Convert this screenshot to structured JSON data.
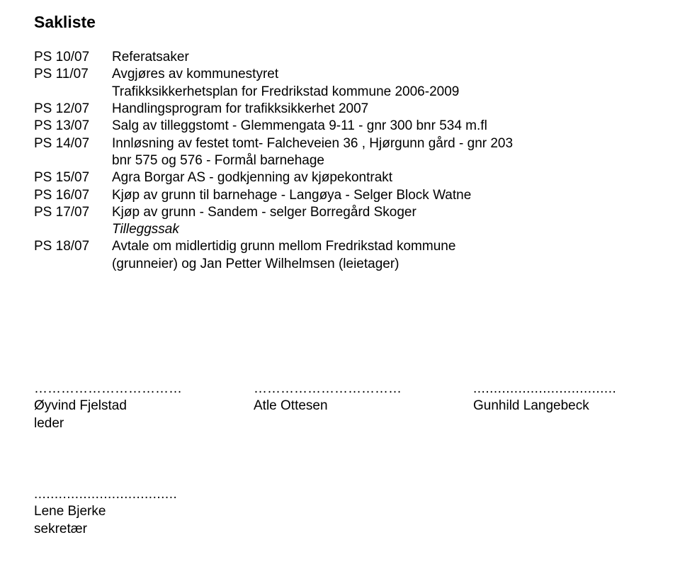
{
  "title": "Sakliste",
  "items": [
    {
      "code": "PS 10/07",
      "lines": [
        "Referatsaker"
      ],
      "italicIdx": []
    },
    {
      "code": "PS 11/07",
      "lines": [
        "Avgjøres av kommunestyret",
        "Trafikksikkerhetsplan for Fredrikstad kommune 2006-2009"
      ],
      "italicIdx": []
    },
    {
      "code": "PS 12/07",
      "lines": [
        "Handlingsprogram for trafikksikkerhet 2007"
      ],
      "italicIdx": []
    },
    {
      "code": "PS 13/07",
      "lines": [
        "Salg av tilleggstomt - Glemmengata 9-11 - gnr 300 bnr 534 m.fl"
      ],
      "italicIdx": []
    },
    {
      "code": "PS 14/07",
      "lines": [
        "Innløsning av festet tomt- Falcheveien 36 , Hjørgunn gård - gnr 203",
        "bnr 575 og 576 - Formål barnehage"
      ],
      "italicIdx": []
    },
    {
      "code": "PS 15/07",
      "lines": [
        "Agra Borgar AS - godkjenning av kjøpekontrakt"
      ],
      "italicIdx": []
    },
    {
      "code": "PS 16/07",
      "lines": [
        "Kjøp av grunn til barnehage - Langøya - Selger Block Watne"
      ],
      "italicIdx": []
    },
    {
      "code": "PS 17/07",
      "lines": [
        "Kjøp av grunn - Sandem - selger Borregård Skoger",
        "Tilleggssak"
      ],
      "italicIdx": [
        1
      ]
    },
    {
      "code": "PS 18/07",
      "lines": [
        "Avtale om midlertidig grunn mellom Fredrikstad kommune",
        "(grunneier) og Jan Petter Wilhelmsen (leietager)"
      ],
      "italicIdx": []
    }
  ],
  "sig1_dots": "……………………………",
  "sig1_name": "Øyvind Fjelstad",
  "sig1_role": "leder",
  "sig2_dots": "……………………………",
  "sig2_name": "Atle Ottesen",
  "sig3_dots": "...................................",
  "sig3_name": "Gunhild Langebeck",
  "sig4_dots": "...................................",
  "sig4_name": "Lene Bjerke",
  "sig4_role": "sekretær"
}
